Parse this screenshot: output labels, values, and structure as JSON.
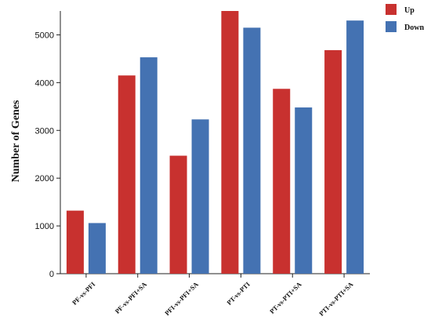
{
  "chart_data": {
    "type": "bar",
    "title": "",
    "xlabel": "",
    "ylabel": "Number of Genes",
    "ylim": [
      0,
      5500
    ],
    "yticks": [
      0,
      1000,
      2000,
      3000,
      4000,
      5000
    ],
    "grid": false,
    "legend_position": "top-right",
    "categories": [
      "PF-vs-PFI",
      "PF-vs-PFI+SA",
      "PFI-vs-PFI+SA",
      "PT-vs-PTI",
      "PT-vs-PTI+SA",
      "PTI-vs-PTI+SA"
    ],
    "series": [
      {
        "name": "Up",
        "color": "#c8312f",
        "values": [
          1320,
          4150,
          2470,
          5500,
          3870,
          4680
        ]
      },
      {
        "name": "Down",
        "color": "#4472b2",
        "values": [
          1060,
          4530,
          3230,
          5150,
          3480,
          5300
        ]
      }
    ]
  }
}
